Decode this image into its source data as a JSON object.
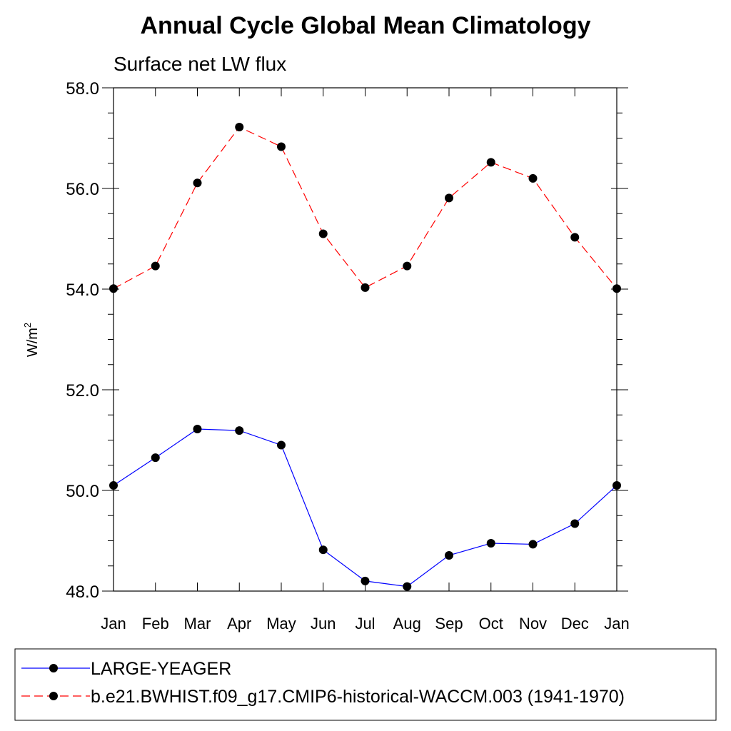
{
  "chart_data": {
    "type": "line",
    "title": "Annual Cycle Global Mean Climatology",
    "subtitle": "Surface net LW flux",
    "ylabel": "W/m",
    "ylabel_superscript": "2",
    "categories": [
      "Jan",
      "Feb",
      "Mar",
      "Apr",
      "May",
      "Jun",
      "Jul",
      "Aug",
      "Sep",
      "Oct",
      "Nov",
      "Dec",
      "Jan"
    ],
    "ylim": [
      48.0,
      58.0
    ],
    "yticks": [
      "48.0",
      "50.0",
      "52.0",
      "54.0",
      "56.0",
      "58.0"
    ],
    "ytick_values": [
      48,
      50,
      52,
      54,
      56,
      58
    ],
    "grid": false,
    "legend_position": "bottom",
    "series": [
      {
        "name": "LARGE-YEAGER",
        "color": "#0000ff",
        "dash": "solid",
        "marker": "filled-circle",
        "values": [
          50.1,
          50.65,
          51.22,
          51.19,
          50.9,
          48.82,
          48.2,
          48.09,
          48.71,
          48.95,
          48.93,
          49.34,
          50.1
        ]
      },
      {
        "name": "b.e21.BWHIST.f09_g17.CMIP6-historical-WACCM.003 (1941-1970)",
        "color": "#ff0000",
        "dash": "dashed",
        "marker": "filled-circle",
        "values": [
          54.01,
          54.46,
          56.11,
          57.22,
          56.83,
          55.1,
          54.03,
          54.46,
          55.81,
          56.52,
          56.2,
          55.03,
          54.01
        ]
      }
    ]
  }
}
